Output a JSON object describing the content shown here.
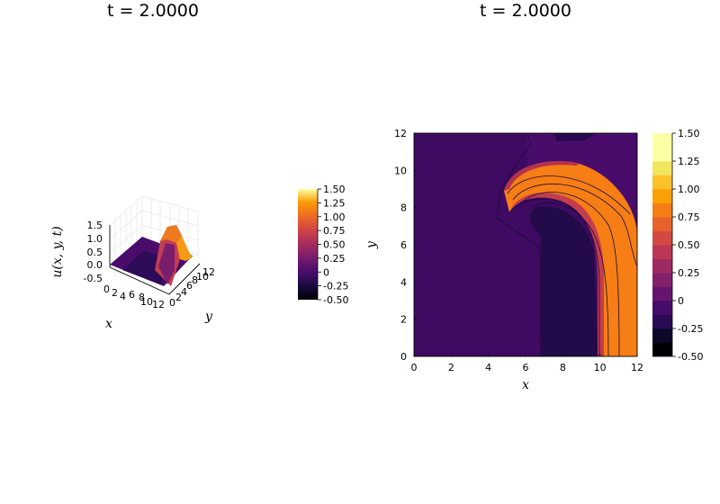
{
  "chart_data": [
    {
      "type": "surface",
      "title": "t = 2.0000",
      "xlabel": "x",
      "ylabel": "y",
      "zlabel": "u(x, y, t)",
      "x_ticks": [
        "0",
        "2",
        "4",
        "6",
        "8",
        "10",
        "12"
      ],
      "y_ticks": [
        "0",
        "2",
        "4",
        "6",
        "8",
        "10",
        "12"
      ],
      "z_ticks": [
        "1.5",
        "1.0",
        "0.5",
        "0.0",
        "-0.5"
      ],
      "xlim": [
        0,
        12
      ],
      "ylim": [
        0,
        12
      ],
      "zlim": [
        -0.5,
        1.5
      ],
      "colorbar": {
        "ticks": [
          "1.50",
          "1.25",
          "1.00",
          "0.75",
          "0.50",
          "0.25",
          "0",
          "-0.25",
          "-0.50"
        ],
        "range": [
          -0.5,
          1.5
        ],
        "colormap": "inferno"
      },
      "grid": true
    },
    {
      "type": "contourf",
      "title": "t = 2.0000",
      "xlabel": "x",
      "ylabel": "y",
      "x_ticks": [
        "0",
        "2",
        "4",
        "6",
        "8",
        "10",
        "12"
      ],
      "y_ticks": [
        "0",
        "2",
        "4",
        "6",
        "8",
        "10",
        "12"
      ],
      "xlim": [
        0,
        12
      ],
      "ylim": [
        0,
        12
      ],
      "levels": [
        -0.5,
        -0.375,
        -0.25,
        -0.125,
        0,
        0.125,
        0.25,
        0.375,
        0.5,
        0.625,
        0.75,
        0.875,
        1.0,
        1.125,
        1.25,
        1.375,
        1.5
      ],
      "colorbar": {
        "ticks": [
          "1.50",
          "1.25",
          "1.00",
          "0.75",
          "0.50",
          "0.25",
          "0",
          "-0.25",
          "-0.50"
        ],
        "range": [
          -0.5,
          1.5
        ],
        "colormap": "inferno",
        "segment_colors": [
          "#000004",
          "#0d0829",
          "#280b53",
          "#470b6a",
          "#65156e",
          "#82206c",
          "#9f2a63",
          "#bb3755",
          "#d44842",
          "#e8602d",
          "#f57d15",
          "#fc9f07",
          "#fac228",
          "#f3e55d",
          "#fcffa4",
          "#fcffa4"
        ]
      },
      "grid": false
    }
  ]
}
